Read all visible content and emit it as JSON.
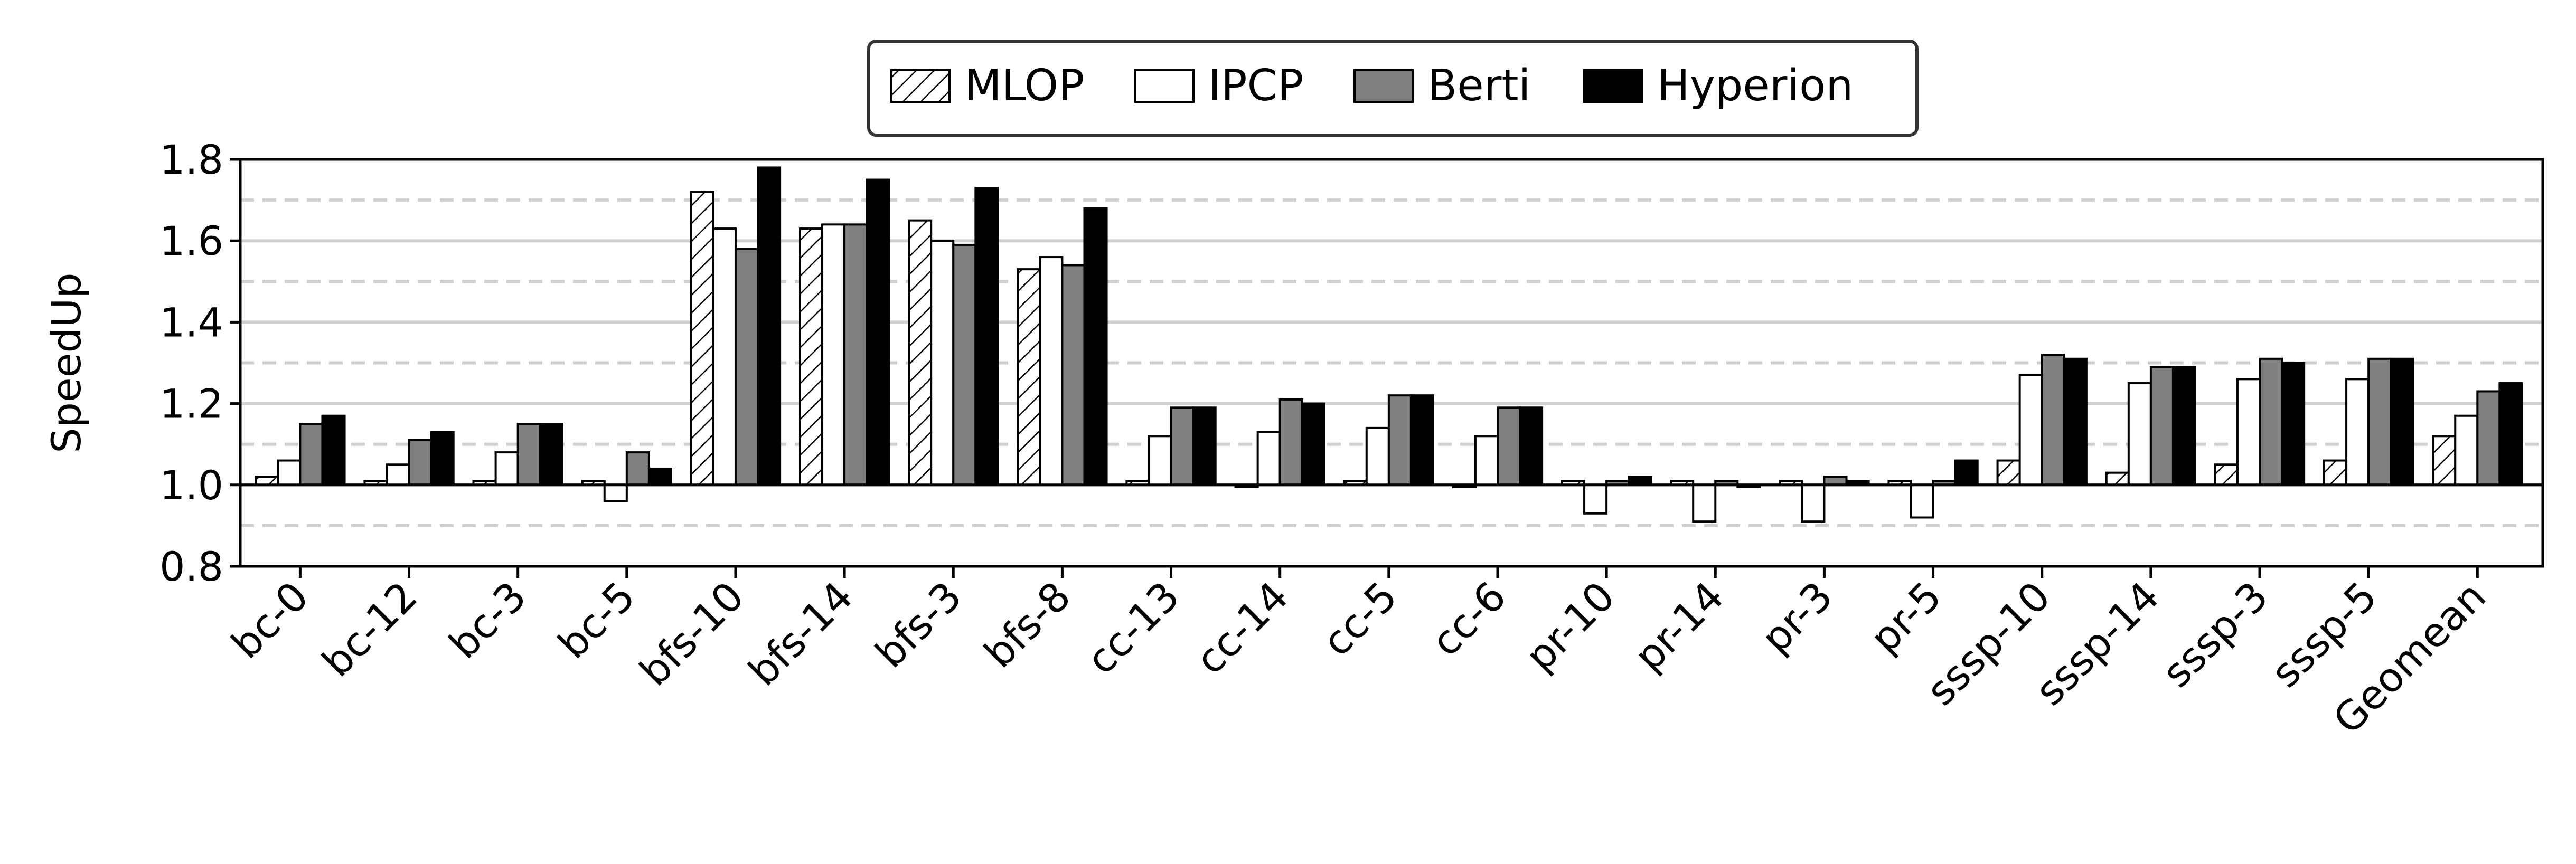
{
  "chart_data": {
    "type": "bar",
    "title": "",
    "xlabel": "",
    "ylabel": "SpeedUp",
    "ylim": [
      0.8,
      1.8
    ],
    "yticks": [
      "0.8",
      "1.0",
      "1.2",
      "1.4",
      "1.6",
      "1.8"
    ],
    "grid": "horizontal, solid at major ticks, dashed at minor ticks",
    "legend_position": "top-center",
    "categories": [
      "bc-0",
      "bc-12",
      "bc-3",
      "bc-5",
      "bfs-10",
      "bfs-14",
      "bfs-3",
      "bfs-8",
      "cc-13",
      "cc-14",
      "cc-5",
      "cc-6",
      "pr-10",
      "pr-14",
      "pr-3",
      "pr-5",
      "sssp-10",
      "sssp-14",
      "sssp-3",
      "sssp-5",
      "Geomean"
    ],
    "series": [
      {
        "name": "MLOP",
        "fill": "#ffffff",
        "pattern": "hatch",
        "values": [
          1.02,
          1.01,
          1.01,
          1.01,
          1.72,
          1.63,
          1.65,
          1.53,
          1.01,
          1.0,
          1.01,
          1.0,
          1.01,
          1.01,
          1.01,
          1.01,
          1.06,
          1.03,
          1.05,
          1.06,
          1.12
        ]
      },
      {
        "name": "IPCP",
        "fill": "#ffffff",
        "values": [
          1.06,
          1.05,
          1.08,
          0.96,
          1.63,
          1.64,
          1.6,
          1.56,
          1.12,
          1.13,
          1.14,
          1.12,
          0.93,
          0.91,
          0.91,
          0.92,
          1.27,
          1.25,
          1.26,
          1.26,
          1.17
        ]
      },
      {
        "name": "Berti",
        "fill": "#808080",
        "values": [
          1.15,
          1.11,
          1.15,
          1.08,
          1.58,
          1.64,
          1.59,
          1.54,
          1.19,
          1.21,
          1.22,
          1.19,
          1.01,
          1.01,
          1.02,
          1.01,
          1.32,
          1.29,
          1.31,
          1.31,
          1.23
        ]
      },
      {
        "name": "Hyperion",
        "fill": "#000000",
        "values": [
          1.17,
          1.13,
          1.15,
          1.04,
          1.78,
          1.75,
          1.73,
          1.68,
          1.19,
          1.2,
          1.22,
          1.19,
          1.02,
          1.0,
          1.01,
          1.06,
          1.31,
          1.29,
          1.3,
          1.31,
          1.25
        ]
      }
    ]
  }
}
